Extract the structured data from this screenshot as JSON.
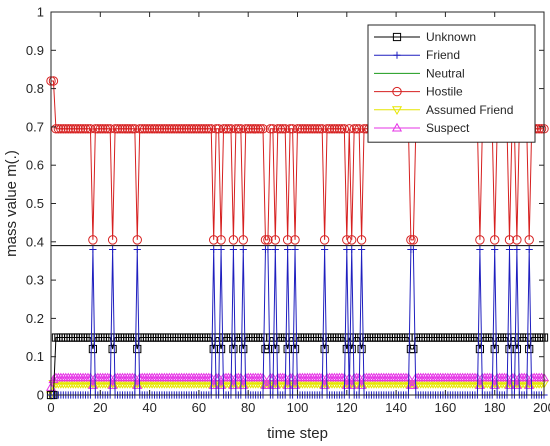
{
  "chart_data": {
    "type": "line",
    "title": "",
    "xlabel": "time step",
    "ylabel": "mass value m(.)",
    "xlim": [
      0,
      200
    ],
    "ylim": [
      0,
      1
    ],
    "xticks": [
      0,
      20,
      40,
      60,
      80,
      100,
      120,
      140,
      160,
      180,
      200
    ],
    "yticks": [
      0,
      0.1,
      0.2,
      0.3,
      0.4,
      0.5,
      0.6,
      0.7,
      0.8,
      0.9,
      1
    ],
    "grid": false,
    "legend_position": "top-right",
    "switch_steps": [
      17,
      25,
      35,
      66,
      69,
      74,
      78,
      87,
      88,
      91,
      96,
      99,
      111,
      120,
      122,
      126,
      146,
      147,
      174,
      180,
      186,
      189,
      194
    ],
    "series": [
      {
        "name": "Unknown",
        "color": "#000000",
        "marker": "square",
        "normal": 0.15,
        "switch": 0.12,
        "initial": [
          0.0,
          0.0
        ]
      },
      {
        "name": "Friend",
        "color": "#1f1fbf",
        "marker": "plus",
        "normal": 0.0,
        "switch": 0.38,
        "initial": [
          0.0,
          0.0
        ]
      },
      {
        "name": "Neutral",
        "color": "#1a9a1a",
        "marker": "none",
        "normal": 0.0,
        "switch": 0.0,
        "initial": [
          0.0,
          0.0
        ]
      },
      {
        "name": "Hostile",
        "color": "#d62020",
        "marker": "circle",
        "normal": 0.695,
        "switch": 0.405,
        "initial": [
          0.82,
          0.82
        ]
      },
      {
        "name": "Assumed Friend",
        "color": "#e6e600",
        "marker": "triangle-down",
        "normal": 0.03,
        "switch": 0.03,
        "initial": [
          0.0,
          0.03
        ]
      },
      {
        "name": "Suspect",
        "color": "#e633e6",
        "marker": "triangle-up",
        "normal": 0.045,
        "switch": 0.025,
        "initial": [
          0.02,
          0.04
        ]
      }
    ],
    "reference_lines": [
      {
        "y": 0.39,
        "color": "#000000"
      }
    ]
  }
}
